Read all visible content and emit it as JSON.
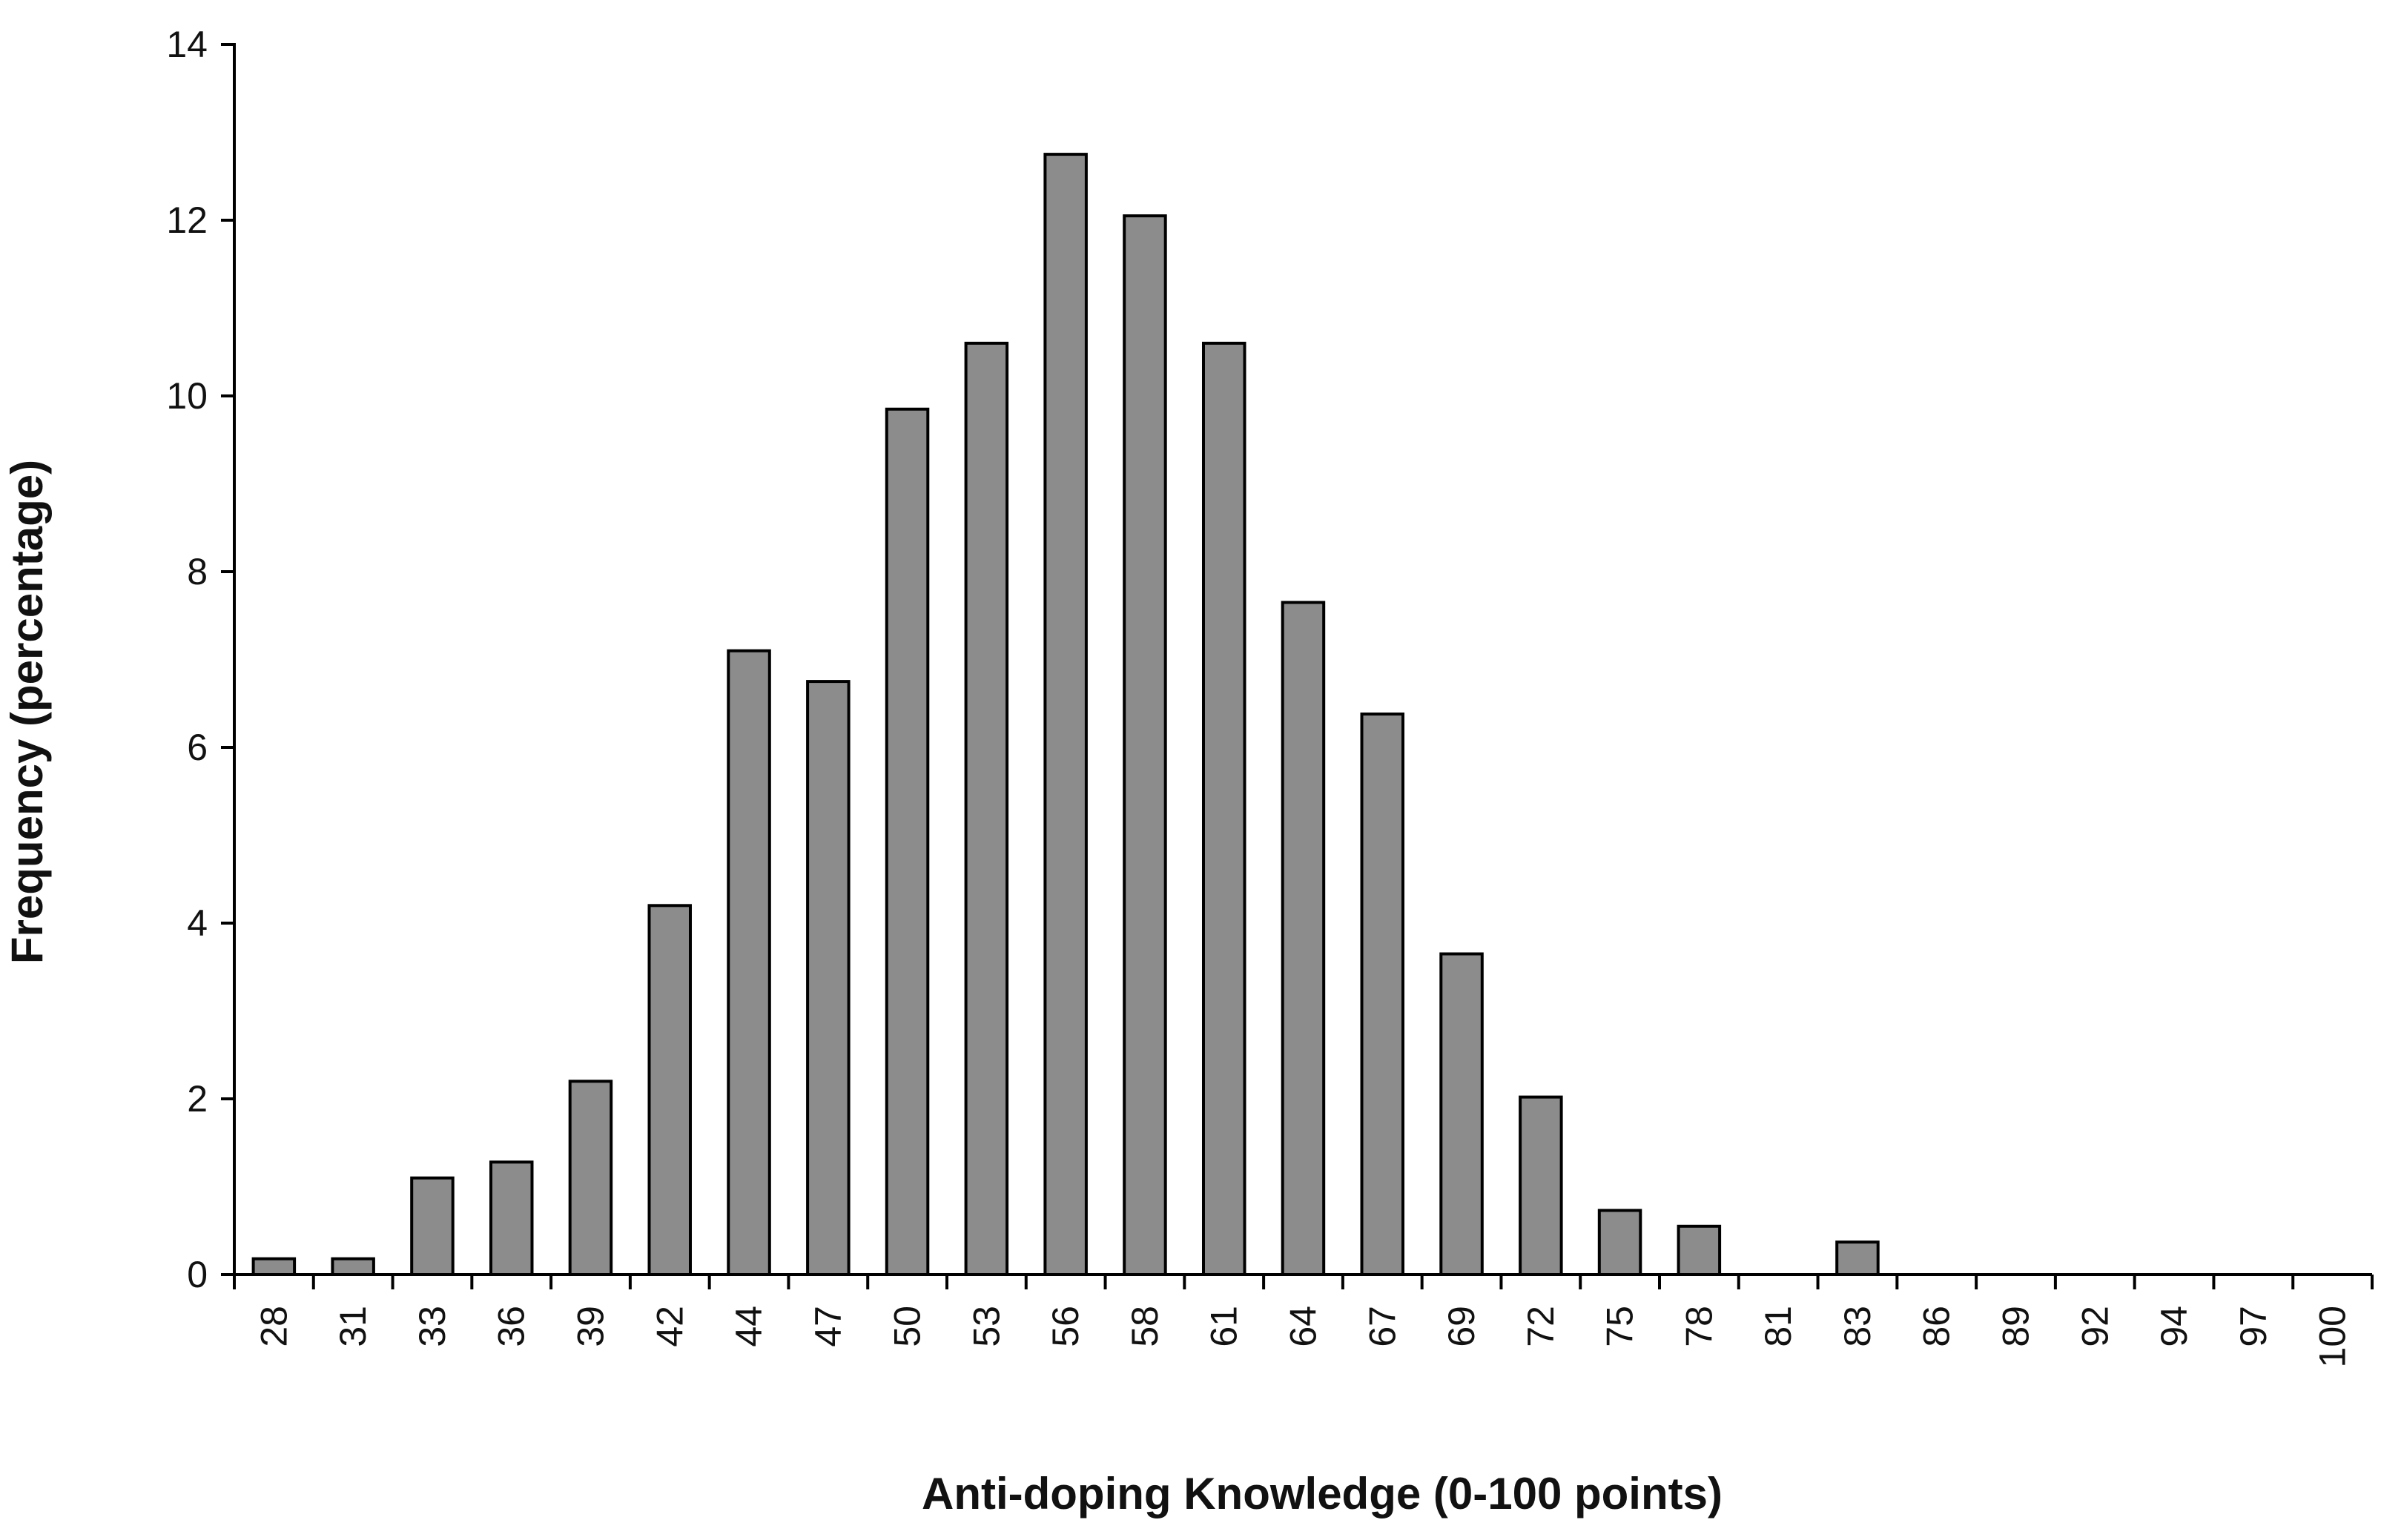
{
  "chart_data": {
    "type": "bar",
    "title": "",
    "xlabel": "Anti-doping Knowledge (0-100 points)",
    "ylabel": "Frequency (percentage)",
    "ylim": [
      0,
      14
    ],
    "yticks": [
      "0",
      "2",
      "4",
      "6",
      "8",
      "10",
      "12",
      "14"
    ],
    "categories": [
      "28",
      "31",
      "33",
      "36",
      "39",
      "42",
      "44",
      "47",
      "50",
      "53",
      "56",
      "58",
      "61",
      "64",
      "67",
      "69",
      "72",
      "75",
      "78",
      "81",
      "83",
      "86",
      "89",
      "92",
      "94",
      "97",
      "100"
    ],
    "values": [
      0.18,
      0.18,
      1.1,
      1.28,
      2.2,
      4.2,
      7.1,
      6.75,
      9.85,
      10.6,
      12.75,
      12.05,
      10.6,
      7.65,
      6.38,
      3.65,
      2.02,
      0.73,
      0.55,
      0,
      0.37,
      0,
      0,
      0,
      0,
      0,
      0
    ],
    "grid": false,
    "legend": "none",
    "colors": {
      "bar_fill": "#8c8c8c",
      "bar_stroke": "#000000",
      "axis": "#000000"
    }
  }
}
